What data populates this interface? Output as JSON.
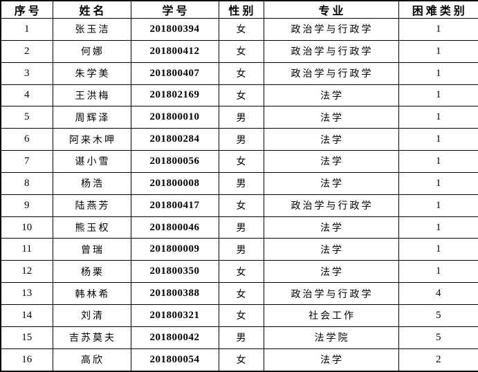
{
  "table": {
    "columns": [
      {
        "key": "index",
        "label": "序号"
      },
      {
        "key": "name",
        "label": "姓名"
      },
      {
        "key": "student_id",
        "label": "学号"
      },
      {
        "key": "gender",
        "label": "性别"
      },
      {
        "key": "major",
        "label": "专业"
      },
      {
        "key": "difficulty",
        "label": "困难类别"
      }
    ],
    "rows": [
      [
        "1",
        "张玉洁",
        "201800394",
        "女",
        "政治学与行政学",
        "1"
      ],
      [
        "2",
        "何娜",
        "201800412",
        "女",
        "政治学与行政学",
        "1"
      ],
      [
        "3",
        "朱学美",
        "201800407",
        "女",
        "政治学与行政学",
        "1"
      ],
      [
        "4",
        "王洪梅",
        "201802169",
        "女",
        "法学",
        "1"
      ],
      [
        "5",
        "周辉泽",
        "201800010",
        "男",
        "法学",
        "1"
      ],
      [
        "6",
        "阿来木呷",
        "201800284",
        "男",
        "法学",
        "1"
      ],
      [
        "7",
        "谌小雪",
        "201800056",
        "女",
        "法学",
        "1"
      ],
      [
        "8",
        "杨浩",
        "201800008",
        "男",
        "法学",
        "1"
      ],
      [
        "9",
        "陆燕芳",
        "201800417",
        "女",
        "政治学与行政学",
        "1"
      ],
      [
        "10",
        "熊玉权",
        "201800046",
        "男",
        "法学",
        "1"
      ],
      [
        "11",
        "曾瑞",
        "201800009",
        "男",
        "法学",
        "1"
      ],
      [
        "12",
        "杨栗",
        "201800350",
        "女",
        "法学",
        "1"
      ],
      [
        "13",
        "韩林希",
        "201800388",
        "女",
        "政治学与行政学",
        "4"
      ],
      [
        "14",
        "刘清",
        "201800321",
        "女",
        "社会工作",
        "5"
      ],
      [
        "15",
        "吉苏莫夫",
        "201800042",
        "男",
        "法学院",
        "5"
      ],
      [
        "16",
        "高欣",
        "201800054",
        "女",
        "法学",
        "2"
      ]
    ]
  },
  "colors": {
    "border": "#000000",
    "text": "#000000",
    "background": "#ffffff"
  }
}
